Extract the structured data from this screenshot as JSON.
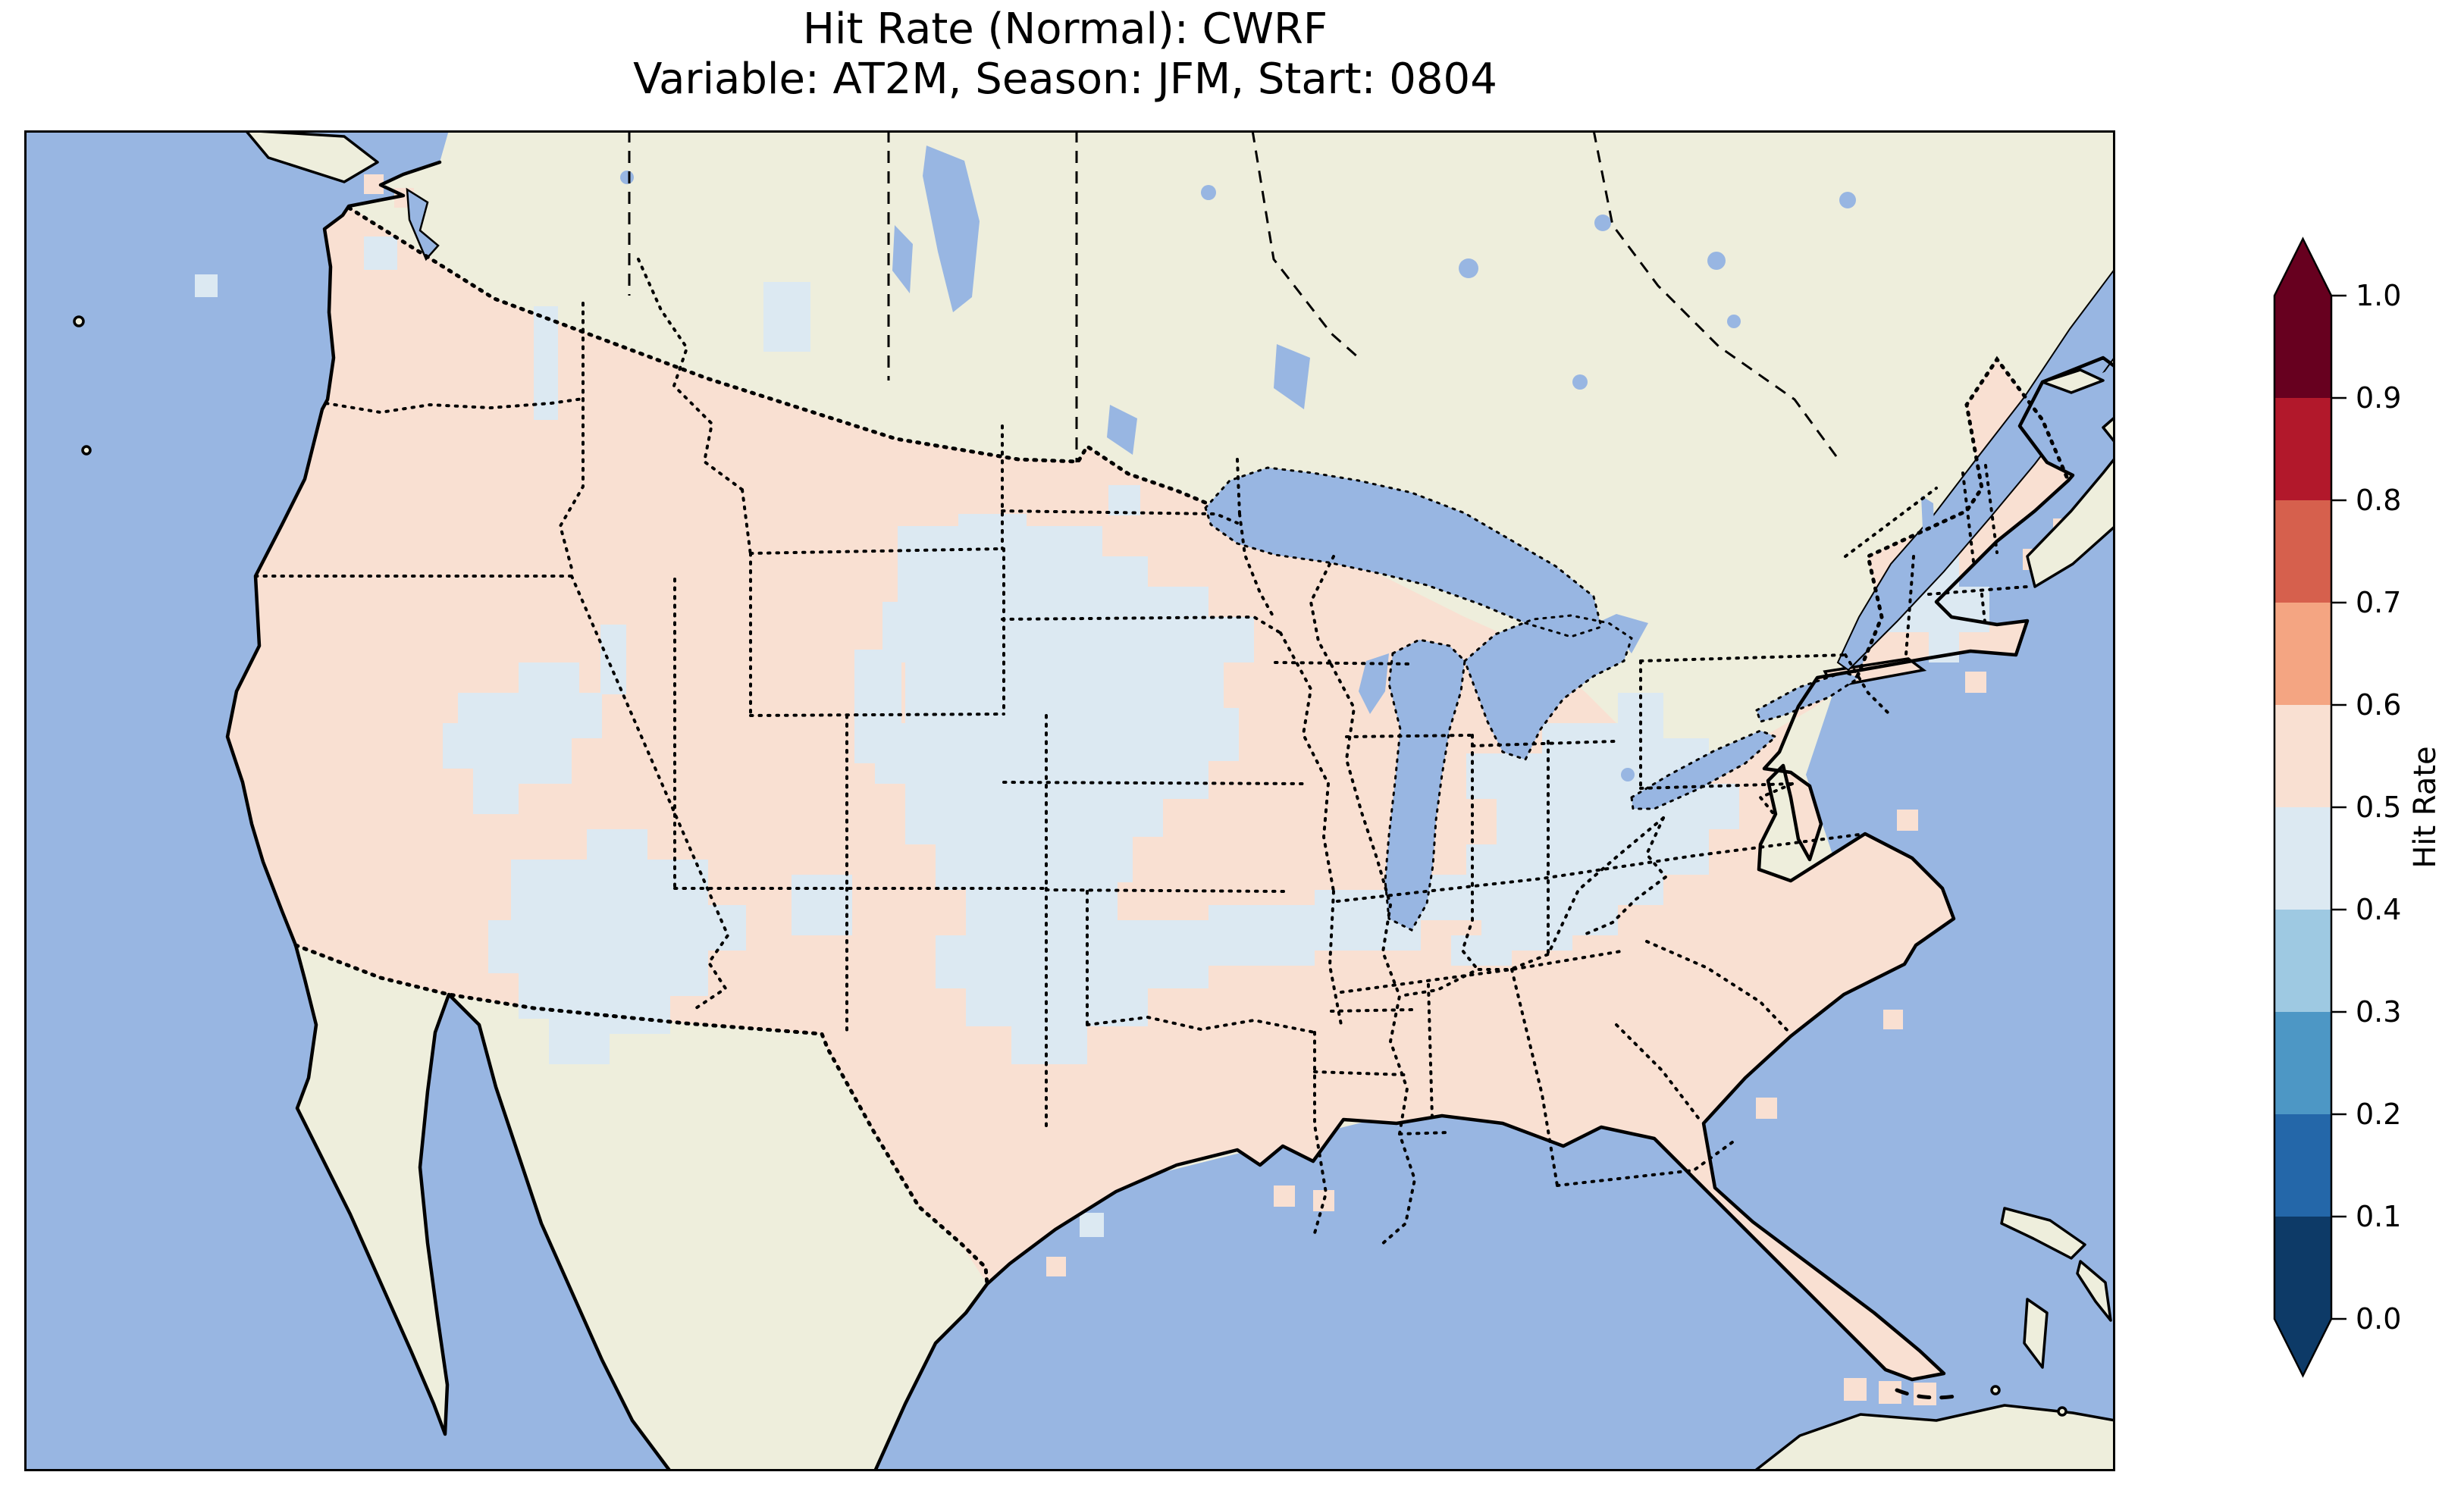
{
  "figure": {
    "title": "Hit Rate (Normal): CWRF",
    "subtitle": "Variable: AT2M, Season: JFM, Start: 0804"
  },
  "colorbar": {
    "label": "Hit Rate",
    "tick_labels": [
      "1.0",
      "0.9",
      "0.8",
      "0.7",
      "0.6",
      "0.5",
      "0.4",
      "0.3",
      "0.2",
      "0.1",
      "0.0"
    ],
    "segment_colors_top_to_bottom": [
      "#67001f",
      "#b2182b",
      "#d6604d",
      "#f4a582",
      "#f9e0d2",
      "#dce9f2",
      "#9ec9e2",
      "#4d97c5",
      "#2467a9",
      "#0d3a67"
    ],
    "extend": "both"
  },
  "colors": {
    "ocean": "#98b6e2",
    "land": "#eeeedc",
    "us_fill": "#f9e0d2",
    "cell_low": "#dce9f2",
    "coast": "#000000"
  },
  "chart_data": {
    "type": "heatmap",
    "subtype": "choropleth-map-CONUS",
    "title": "Hit Rate (Normal): CWRF",
    "subtitle": "Variable: AT2M, Season: JFM, Start: 0804",
    "model": "CWRF",
    "metric": "Hit Rate (Normal)",
    "variable": "AT2M",
    "season": "JFM",
    "start": "0804",
    "colorbar_label": "Hit Rate",
    "colorbar_range": [
      0.0,
      1.0
    ],
    "colorbar_levels": [
      0.0,
      0.1,
      0.2,
      0.3,
      0.4,
      0.5,
      0.6,
      0.7,
      0.8,
      0.9,
      1.0
    ],
    "colormap": "RdBu_r (10 discrete bins, extended arrows both ends)",
    "legend_position": "right",
    "data_summary": {
      "dominant_bin": "0.5-0.6 (light pink) over most of the contiguous United States",
      "secondary_bin": "0.4-0.5 (very light blue) scattered patches",
      "patch_regions_0.4_0.5": [
        "Central Plains: Nebraska / South Dakota / Iowa / Kansas / Missouri",
        "West Virginia and central Appalachians",
        "Nevada, Utah and Arizona patches",
        "small patches near the Canadian border (Washington, Idaho, Montana, North Dakota)",
        "small New England patch",
        "small New Mexico and Texas-coast patches"
      ],
      "no_data_regions": "Canada, Mexico, oceans and Great Lakes shown as base map (beige land, blue water)"
    }
  }
}
